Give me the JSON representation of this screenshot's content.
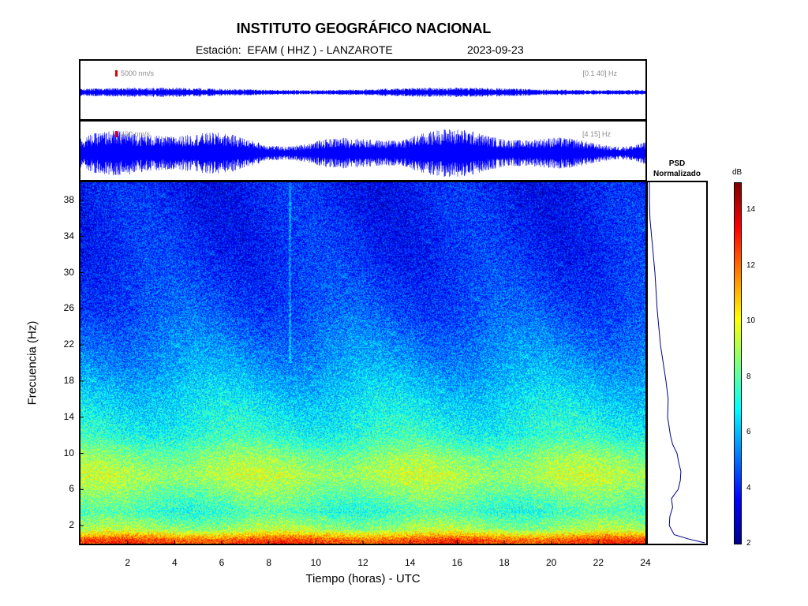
{
  "header": {
    "title": "INSTITUTO GEOGRÁFICO NACIONAL",
    "station_prefix": "Estación:",
    "station": "EFAM ( HHZ ) - LANZAROTE",
    "date": "2023-09-23"
  },
  "traces": [
    {
      "scale_label": "5000 nm/s",
      "band_label": "[0.1 40] Hz",
      "amplitude_fraction": 0.05,
      "color": "#0000ff"
    },
    {
      "scale_label": "400 nm/s",
      "band_label": "[4 15] Hz",
      "amplitude_fraction": 0.22,
      "color": "#0000ff"
    }
  ],
  "psd": {
    "title_line1": "PSD",
    "title_line2": "Normalizado",
    "color": "#00008b"
  },
  "colorbar": {
    "unit": "dB",
    "min": 2,
    "max": 15,
    "ticks": [
      "14",
      "12",
      "10",
      "8",
      "6",
      "4",
      "2"
    ]
  },
  "chart_data": {
    "type": "heatmap",
    "title": "INSTITUTO GEOGRÁFICO NACIONAL",
    "xlabel": "Tiempo (horas) - UTC",
    "ylabel": "Frecuencia  (Hz)",
    "xlim": [
      0,
      24
    ],
    "ylim": [
      0,
      40
    ],
    "x_ticks": [
      "2",
      "4",
      "6",
      "8",
      "10",
      "12",
      "14",
      "16",
      "18",
      "20",
      "22",
      "24"
    ],
    "y_ticks": [
      "38",
      "34",
      "30",
      "26",
      "22",
      "18",
      "14",
      "10",
      "6",
      "2"
    ],
    "colorscale": "jet",
    "value_unit": "dB",
    "value_range": [
      2,
      15
    ],
    "frequency_profile_db": [
      {
        "hz": 0.3,
        "db": 12.5
      },
      {
        "hz": 1.5,
        "db": 9.0
      },
      {
        "hz": 3.5,
        "db": 7.6
      },
      {
        "hz": 5.5,
        "db": 8.4
      },
      {
        "hz": 7.5,
        "db": 9.2
      },
      {
        "hz": 9.5,
        "db": 8.6
      },
      {
        "hz": 12.0,
        "db": 7.3
      },
      {
        "hz": 16.0,
        "db": 6.5
      },
      {
        "hz": 20.0,
        "db": 5.6
      },
      {
        "hz": 26.0,
        "db": 4.6
      },
      {
        "hz": 32.0,
        "db": 4.1
      },
      {
        "hz": 38.0,
        "db": 3.9
      },
      {
        "hz": 40.0,
        "db": 3.8
      }
    ],
    "psd_normalized": [
      {
        "hz": 0.1,
        "value": 1.0
      },
      {
        "hz": 0.5,
        "value": 0.72
      },
      {
        "hz": 1.0,
        "value": 0.45
      },
      {
        "hz": 2.0,
        "value": 0.36
      },
      {
        "hz": 3.0,
        "value": 0.37
      },
      {
        "hz": 4.0,
        "value": 0.42
      },
      {
        "hz": 5.0,
        "value": 0.4
      },
      {
        "hz": 6.0,
        "value": 0.52
      },
      {
        "hz": 7.0,
        "value": 0.56
      },
      {
        "hz": 8.0,
        "value": 0.57
      },
      {
        "hz": 9.0,
        "value": 0.53
      },
      {
        "hz": 10.0,
        "value": 0.5
      },
      {
        "hz": 11.0,
        "value": 0.42
      },
      {
        "hz": 12.0,
        "value": 0.38
      },
      {
        "hz": 14.0,
        "value": 0.33
      },
      {
        "hz": 16.0,
        "value": 0.34
      },
      {
        "hz": 18.0,
        "value": 0.3
      },
      {
        "hz": 20.0,
        "value": 0.25
      },
      {
        "hz": 22.0,
        "value": 0.2
      },
      {
        "hz": 24.0,
        "value": 0.17
      },
      {
        "hz": 26.0,
        "value": 0.14
      },
      {
        "hz": 28.0,
        "value": 0.12
      },
      {
        "hz": 30.0,
        "value": 0.1
      },
      {
        "hz": 32.0,
        "value": 0.07
      },
      {
        "hz": 34.0,
        "value": 0.04
      },
      {
        "hz": 36.0,
        "value": 0.01
      },
      {
        "hz": 38.0,
        "value": 0.0
      },
      {
        "hz": 40.0,
        "value": 0.0
      }
    ]
  }
}
